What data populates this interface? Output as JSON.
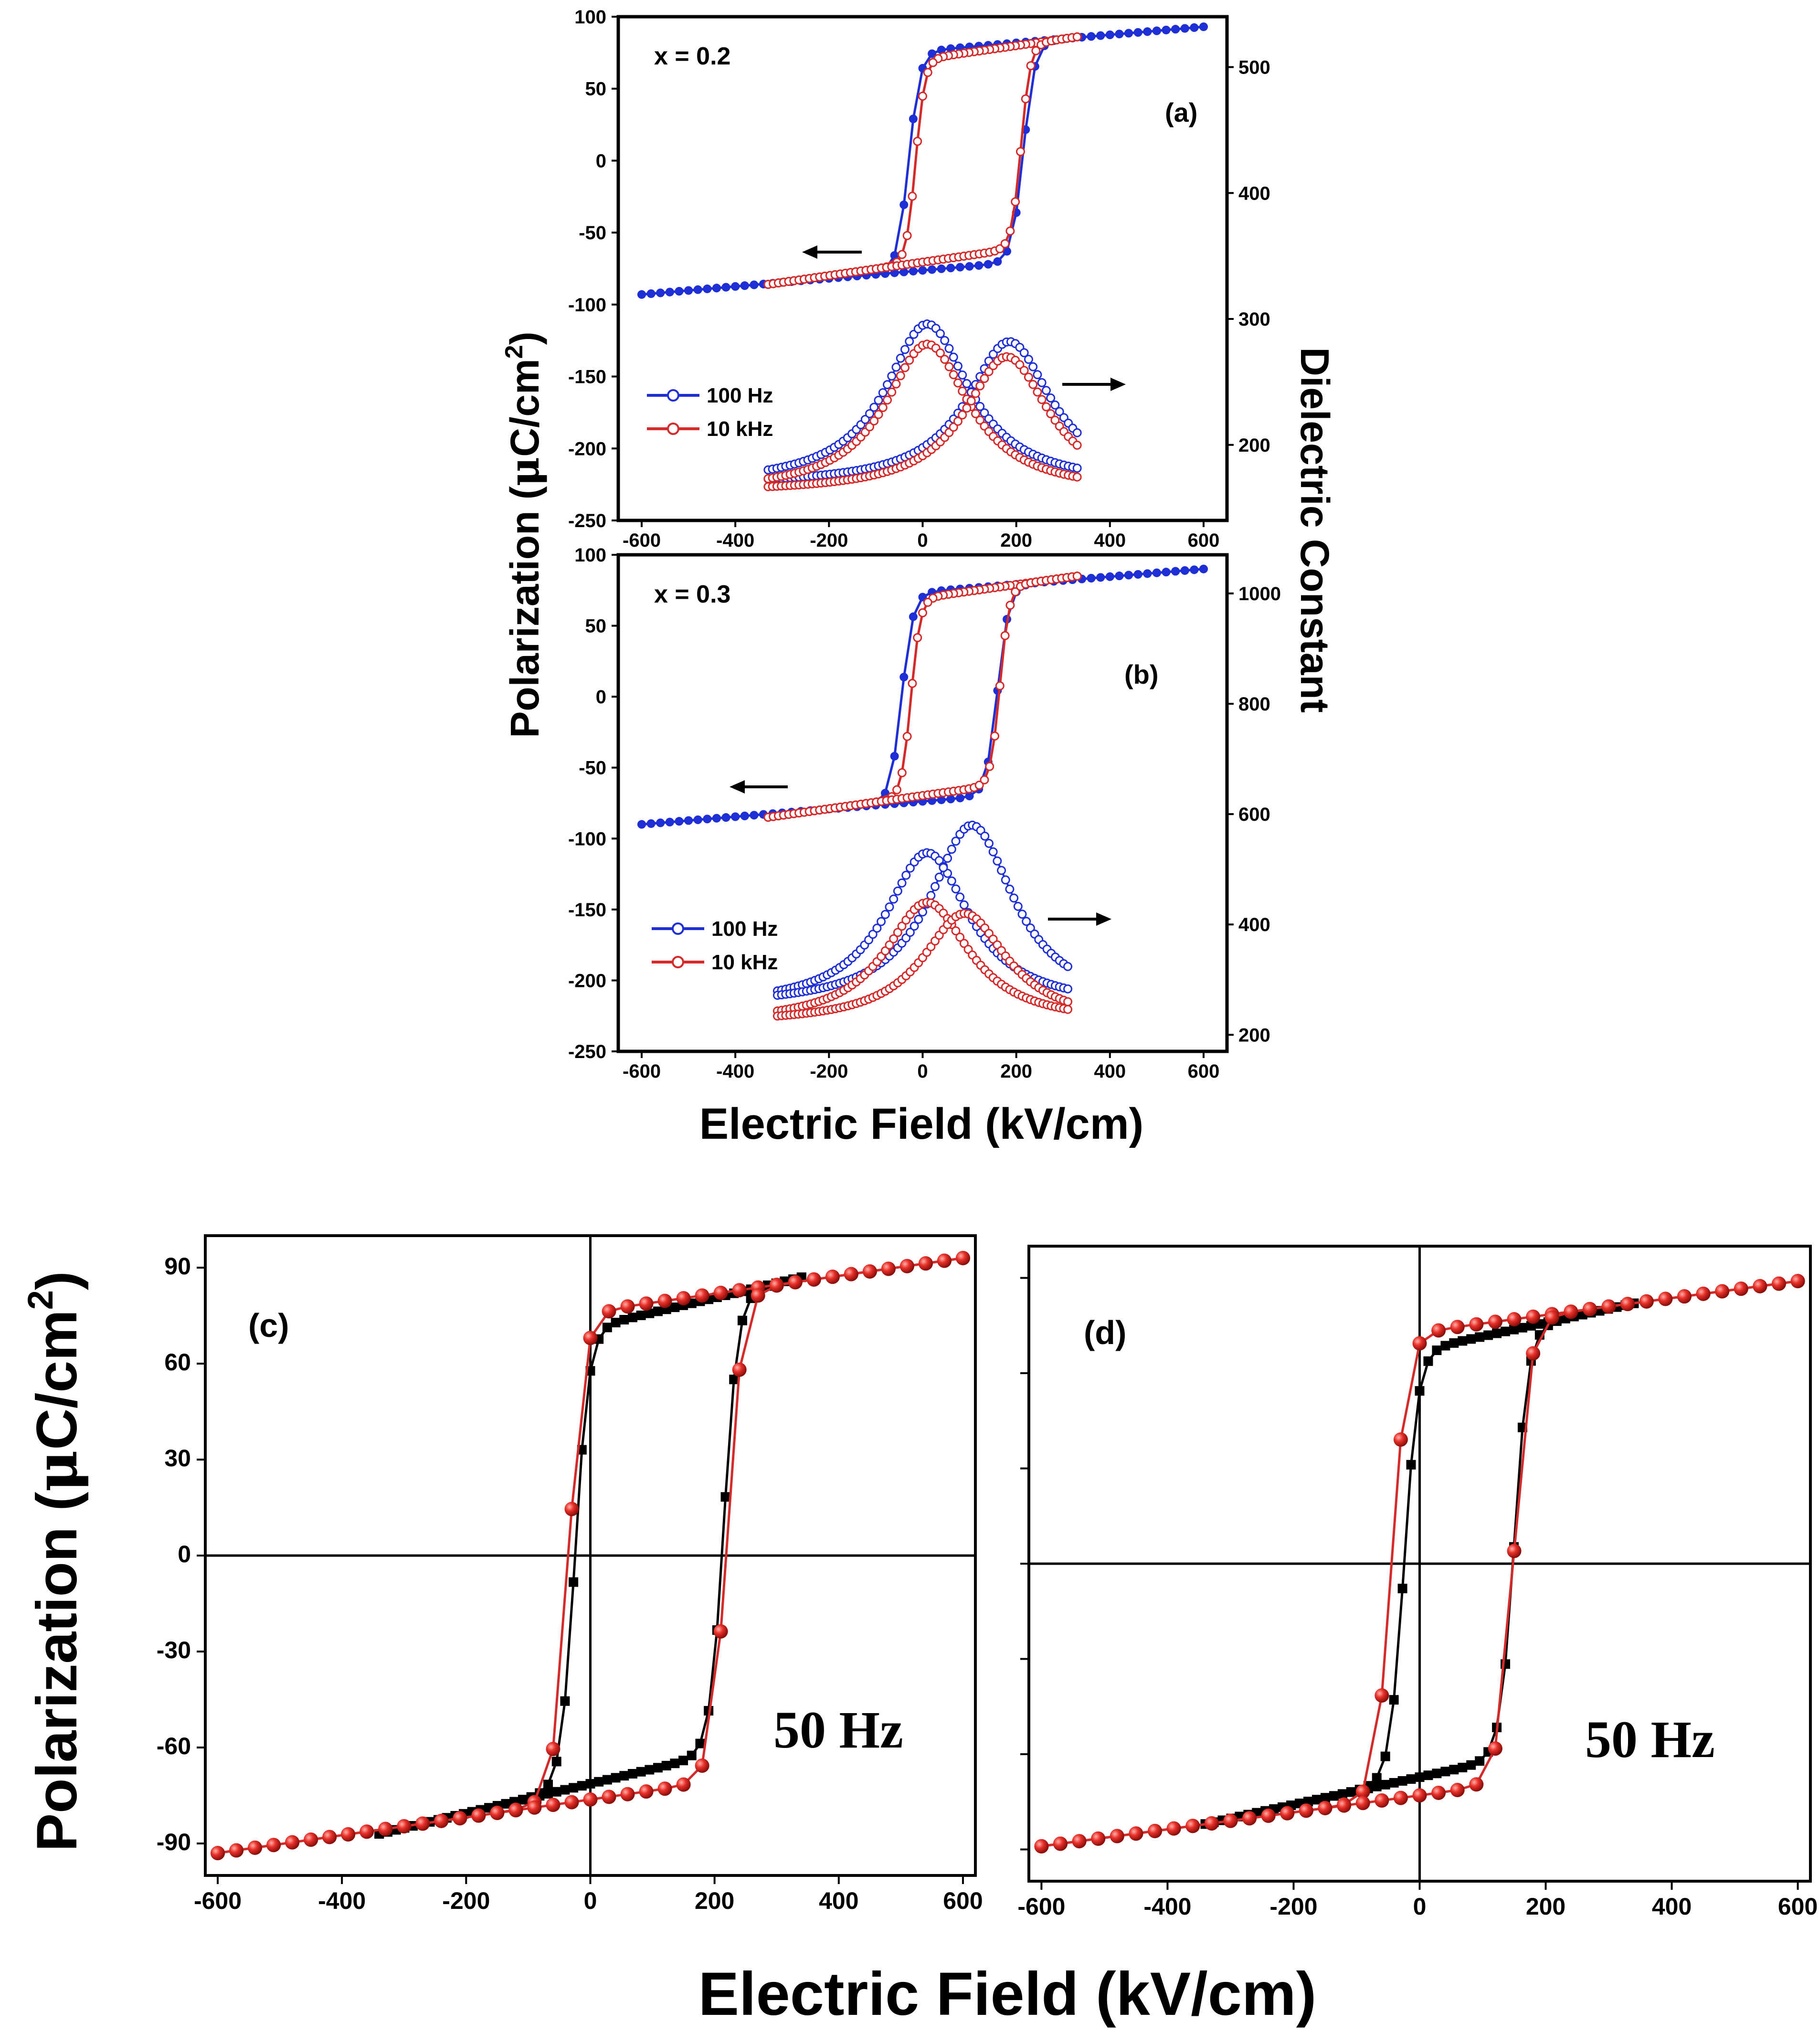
{
  "colors": {
    "blue": "#1f2fd6",
    "red": "#d42a2a",
    "black": "#000000",
    "redFill": "#e8302a"
  },
  "chart_data": [
    {
      "type": "line",
      "panel": "(a)",
      "composition": "x = 0.2",
      "xlim": [
        -650,
        650
      ],
      "xticks": [
        -600,
        -400,
        -200,
        0,
        200,
        400,
        600
      ],
      "ylim": [
        -250,
        100
      ],
      "yticks": [
        -250,
        -200,
        -150,
        -100,
        -50,
        0,
        50,
        100
      ],
      "y2lim": [
        140,
        540
      ],
      "y2ticks": [
        200,
        300,
        400,
        500
      ],
      "legend": [
        "100 Hz",
        "10 kHz"
      ],
      "hysteresis": {
        "100 Hz": {
          "range": [
            -600,
            600
          ],
          "Ec_neg": -30,
          "Ec_pos": 215,
          "Psat": 93
        },
        "10 kHz": {
          "range": [
            -330,
            330
          ],
          "Ec_neg": -15,
          "Ec_pos": 210,
          "Psat": 86
        }
      },
      "dielectric": {
        "100 Hz": {
          "range": [
            -330,
            330
          ],
          "peak_neg_field": 10,
          "peak_neg_value": 296,
          "peak_pos_field": 185,
          "peak_pos_value": 282,
          "end_value": 168
        },
        "10 kHz": {
          "range": [
            -330,
            330
          ],
          "peak_neg_field": 10,
          "peak_neg_value": 280,
          "peak_pos_field": 180,
          "peak_pos_value": 270,
          "end_value": 162
        }
      }
    },
    {
      "type": "line",
      "panel": "(b)",
      "composition": "x = 0.3",
      "xlim": [
        -650,
        650
      ],
      "xticks": [
        -600,
        -400,
        -200,
        0,
        200,
        400,
        600
      ],
      "ylim": [
        -250,
        100
      ],
      "yticks": [
        -250,
        -200,
        -150,
        -100,
        -50,
        0,
        50,
        100
      ],
      "y2lim": [
        170,
        1070
      ],
      "y2ticks": [
        200,
        400,
        600,
        800,
        1000
      ],
      "legend": [
        "100 Hz",
        "10 kHz"
      ],
      "hysteresis": {
        "100 Hz": {
          "range": [
            -600,
            600
          ],
          "Ec_neg": -45,
          "Ec_pos": 160,
          "Psat": 90
        },
        "10 kHz": {
          "range": [
            -330,
            330
          ],
          "Ec_neg": -25,
          "Ec_pos": 165,
          "Psat": 85
        }
      },
      "dielectric": {
        "100 Hz": {
          "range": [
            -310,
            310
          ],
          "peak_neg_field": 10,
          "peak_neg_value": 530,
          "peak_pos_field": 105,
          "peak_pos_value": 580,
          "end_value": 250
        },
        "10 kHz": {
          "range": [
            -310,
            310
          ],
          "peak_neg_field": 10,
          "peak_neg_value": 440,
          "peak_pos_field": 90,
          "peak_pos_value": 420,
          "end_value": 220
        }
      }
    },
    {
      "type": "line",
      "panel": "(c)",
      "annotation": "50 Hz",
      "xlim": [
        -620,
        620
      ],
      "xticks": [
        -600,
        -400,
        -200,
        0,
        200,
        400,
        600
      ],
      "ylim": [
        -100,
        100
      ],
      "yticks": [
        -90,
        -60,
        -30,
        0,
        30,
        60,
        90
      ],
      "series": [
        {
          "name": "black squares",
          "range": [
            -340,
            340
          ],
          "Ec_neg": -25,
          "Ec_pos": 215,
          "Psat": 87
        },
        {
          "name": "red circles",
          "range": [
            -600,
            600
          ],
          "Ec_neg": -35,
          "Ec_pos": 220,
          "Psat": 93
        }
      ]
    },
    {
      "type": "line",
      "panel": "(d)",
      "annotation": "50 Hz",
      "xlim": [
        -620,
        620
      ],
      "xticks": [
        -600,
        -400,
        -200,
        0,
        200,
        400,
        600
      ],
      "ylim": [
        -100,
        100
      ],
      "yticks": [
        -90,
        -60,
        -30,
        0,
        30,
        60,
        90
      ],
      "ytick_labels_shown": false,
      "series": [
        {
          "name": "black squares",
          "range": [
            -340,
            340
          ],
          "Ec_neg": -25,
          "Ec_pos": 150,
          "Psat": 82
        },
        {
          "name": "red circles",
          "range": [
            -600,
            600
          ],
          "Ec_neg": -45,
          "Ec_pos": 150,
          "Psat": 89
        }
      ]
    }
  ],
  "labels": {
    "a_panel": "(a)",
    "b_panel": "(b)",
    "c_panel": "(c)",
    "d_panel": "(d)",
    "a_comp": "x = 0.2",
    "b_comp": "x = 0.3",
    "leg1": "100 Hz",
    "leg2": "10 kHz",
    "freq": "50 Hz",
    "ylabel_prefix": "Polarization (",
    "ylabel_mu": "μ",
    "ylabel_unit": "C/cm",
    "ylabel_sup": "2",
    "ylabel_suffix": ")",
    "y2label": "Dielectric Constant",
    "xlabel": "Electric Field (kV/cm)"
  }
}
